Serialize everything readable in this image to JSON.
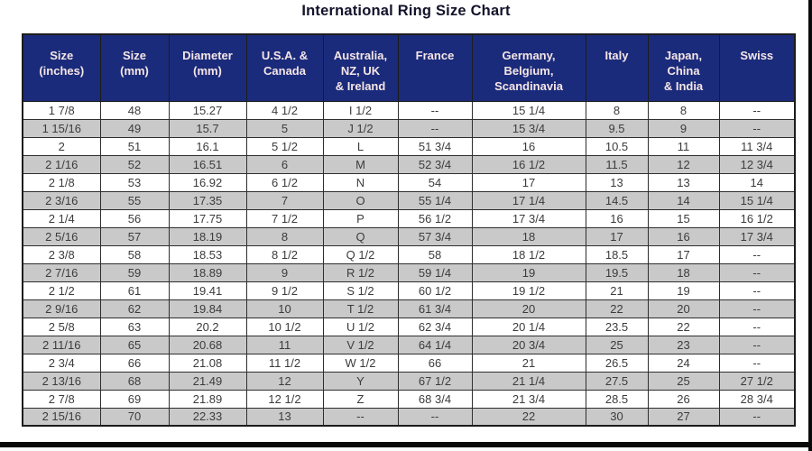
{
  "title": "International Ring Size Chart",
  "colors": {
    "header_bg": "#1b2b7b",
    "header_text": "#f5e6e6",
    "row_alt_bg": "#c9c9c9",
    "row_bg": "#ffffff",
    "body_text": "#3c3c3c",
    "border": "#1c1c1c",
    "title_text": "#13132b"
  },
  "chart_data": {
    "type": "table",
    "title": "International Ring Size Chart",
    "columns": [
      "Size\n(inches)",
      "Size\n(mm)",
      "Diameter\n(mm)",
      "U.S.A. &\nCanada",
      "Australia,\nNZ, UK\n& Ireland",
      "France",
      "Germany,\nBelgium,\nScandinavia",
      "Italy",
      "Japan,\nChina\n& India",
      "Swiss"
    ],
    "rows": [
      [
        "1 7/8",
        "48",
        "15.27",
        "4 1/2",
        "I 1/2",
        "--",
        "15 1/4",
        "8",
        "8",
        "--"
      ],
      [
        "1 15/16",
        "49",
        "15.7",
        "5",
        "J 1/2",
        "--",
        "15 3/4",
        "9.5",
        "9",
        "--"
      ],
      [
        "2",
        "51",
        "16.1",
        "5 1/2",
        "L",
        "51 3/4",
        "16",
        "10.5",
        "11",
        "11 3/4"
      ],
      [
        "2 1/16",
        "52",
        "16.51",
        "6",
        "M",
        "52 3/4",
        "16 1/2",
        "11.5",
        "12",
        "12 3/4"
      ],
      [
        "2 1/8",
        "53",
        "16.92",
        "6 1/2",
        "N",
        "54",
        "17",
        "13",
        "13",
        "14"
      ],
      [
        "2 3/16",
        "55",
        "17.35",
        "7",
        "O",
        "55 1/4",
        "17 1/4",
        "14.5",
        "14",
        "15 1/4"
      ],
      [
        "2 1/4",
        "56",
        "17.75",
        "7 1/2",
        "P",
        "56 1/2",
        "17 3/4",
        "16",
        "15",
        "16 1/2"
      ],
      [
        "2 5/16",
        "57",
        "18.19",
        "8",
        "Q",
        "57 3/4",
        "18",
        "17",
        "16",
        "17 3/4"
      ],
      [
        "2 3/8",
        "58",
        "18.53",
        "8 1/2",
        "Q 1/2",
        "58",
        "18 1/2",
        "18.5",
        "17",
        "--"
      ],
      [
        "2 7/16",
        "59",
        "18.89",
        "9",
        "R 1/2",
        "59 1/4",
        "19",
        "19.5",
        "18",
        "--"
      ],
      [
        "2 1/2",
        "61",
        "19.41",
        "9 1/2",
        "S 1/2",
        "60 1/2",
        "19 1/2",
        "21",
        "19",
        "--"
      ],
      [
        "2 9/16",
        "62",
        "19.84",
        "10",
        "T 1/2",
        "61 3/4",
        "20",
        "22",
        "20",
        "--"
      ],
      [
        "2 5/8",
        "63",
        "20.2",
        "10 1/2",
        "U 1/2",
        "62 3/4",
        "20 1/4",
        "23.5",
        "22",
        "--"
      ],
      [
        "2 11/16",
        "65",
        "20.68",
        "11",
        "V 1/2",
        "64 1/4",
        "20 3/4",
        "25",
        "23",
        "--"
      ],
      [
        "2 3/4",
        "66",
        "21.08",
        "11 1/2",
        "W 1/2",
        "66",
        "21",
        "26.5",
        "24",
        "--"
      ],
      [
        "2 13/16",
        "68",
        "21.49",
        "12",
        "Y",
        "67 1/2",
        "21 1/4",
        "27.5",
        "25",
        "27 1/2"
      ],
      [
        "2 7/8",
        "69",
        "21.89",
        "12 1/2",
        "Z",
        "68 3/4",
        "21 3/4",
        "28.5",
        "26",
        "28 3/4"
      ],
      [
        "2 15/16",
        "70",
        "22.33",
        "13",
        "--",
        "--",
        "22",
        "30",
        "27",
        "--"
      ]
    ]
  }
}
